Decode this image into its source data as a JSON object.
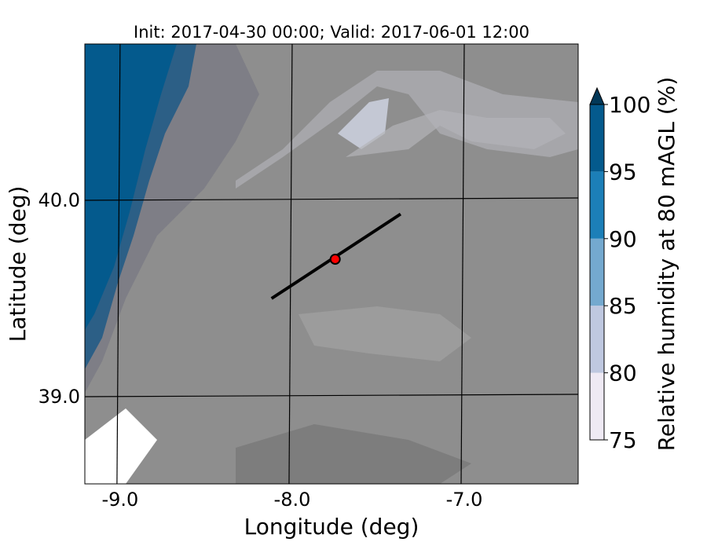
{
  "title": "Init: 2017-04-30 00:00; Valid: 2017-06-01 12:00",
  "map": {
    "xlabel": "Longitude (deg)",
    "ylabel": "Latitude (deg)",
    "xlim": [
      -9.205,
      -6.338
    ],
    "ylim": [
      38.556,
      40.796
    ],
    "xticks": [
      {
        "value": -9,
        "label": "-9.0"
      },
      {
        "value": -8,
        "label": "-8.0"
      },
      {
        "value": -7,
        "label": "-7.0"
      }
    ],
    "yticks": [
      {
        "value": 39,
        "label": "39.0"
      },
      {
        "value": 40,
        "label": "40.0"
      }
    ],
    "transect": {
      "x": [
        -8.12,
        -7.37
      ],
      "y": [
        39.5,
        39.93
      ],
      "color": "#000000"
    },
    "point": {
      "x": -7.75,
      "y": 39.7,
      "color": "#ff0000"
    }
  },
  "colorbar": {
    "label": "Relative humidity at 80 mAGL (%)",
    "ticks": [
      75,
      80,
      85,
      90,
      95,
      100
    ],
    "colors": [
      "#efeaf4",
      "#bfc8e0",
      "#74a9cf",
      "#1c7fb8",
      "#045a8d"
    ],
    "extend_color": "#023858"
  }
}
